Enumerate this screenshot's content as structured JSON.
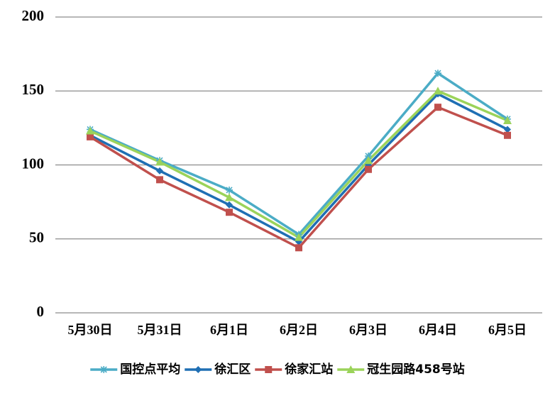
{
  "chart_data": {
    "type": "line",
    "categories": [
      "5月30日",
      "5月31日",
      "6月1日",
      "6月2日",
      "6月3日",
      "6月4日",
      "6月5日"
    ],
    "series": [
      {
        "name": "国控点平均",
        "color": "#4bacc6",
        "marker": "asterisk",
        "values": [
          124,
          103,
          83,
          53,
          106,
          162,
          131
        ]
      },
      {
        "name": "徐汇区",
        "color": "#1f6fb4",
        "marker": "diamond",
        "values": [
          120,
          96,
          73,
          48,
          100,
          148,
          124
        ]
      },
      {
        "name": "徐家汇站",
        "color": "#c0504d",
        "marker": "square",
        "values": [
          119,
          90,
          68,
          44,
          97,
          139,
          120
        ]
      },
      {
        "name": "冠生园路458号站",
        "color": "#9bd35a",
        "marker": "triangle",
        "values": [
          123,
          102,
          78,
          51,
          103,
          150,
          130
        ]
      }
    ],
    "ylim": [
      0,
      200
    ],
    "yticks": [
      0,
      50,
      100,
      150,
      200
    ],
    "grid": true,
    "legend": "bottom"
  }
}
